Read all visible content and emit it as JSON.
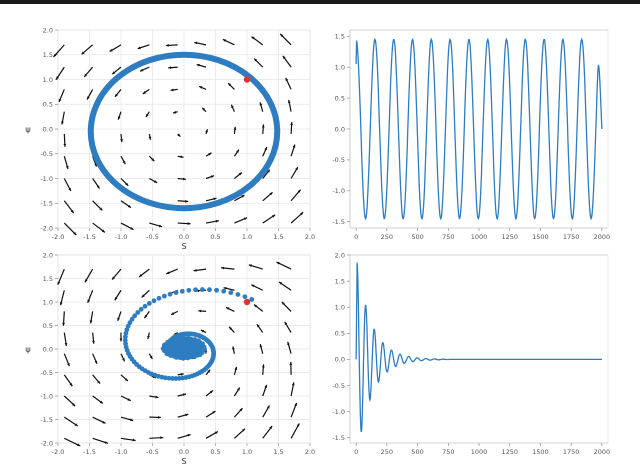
{
  "chart_data": [
    {
      "type": "scatter",
      "subtype": "phase-portrait-quiver",
      "xlabel": "S",
      "ylabel": "ψ",
      "xlim": [
        -2.0,
        2.0
      ],
      "ylim": [
        -2.0,
        2.0
      ],
      "xticks": [
        "-2.0",
        "-1.5",
        "-1.0",
        "-0.5",
        "0.0",
        "0.5",
        "1.0",
        "1.5",
        "2.0"
      ],
      "yticks": [
        "-2.0",
        "-1.5",
        "-1.0",
        "-0.5",
        "0.0",
        "0.5",
        "1.0",
        "1.5",
        "2.0"
      ],
      "grid": true,
      "series": [
        {
          "kind": "trajectory",
          "shape": "closed-orbit",
          "center": [
            0.0,
            -0.05
          ],
          "radius_x": 1.48,
          "radius_y": 1.55,
          "color": "#2e7dc0"
        },
        {
          "kind": "start-point",
          "x": 1.0,
          "y": 1.0,
          "color": "#e03030"
        }
      ]
    },
    {
      "type": "line",
      "xlim": [
        -50,
        2050
      ],
      "ylim": [
        -1.6,
        1.6
      ],
      "xticks": [
        "0",
        "250",
        "500",
        "750",
        "1000",
        "1250",
        "1500",
        "1750",
        "2000"
      ],
      "yticks": [
        "-1.5",
        "-1.0",
        "-0.5",
        "0.0",
        "0.5",
        "1.0",
        "1.5"
      ],
      "grid": false,
      "series": [
        {
          "kind": "sinusoid",
          "amplitude": 1.45,
          "period": 153,
          "x_start": 0,
          "x_end": 2000,
          "end_y": 0.0,
          "color": "#2e7dc0"
        }
      ]
    },
    {
      "type": "scatter",
      "subtype": "phase-portrait-quiver",
      "xlabel": "S",
      "ylabel": "ψ",
      "xlim": [
        -2.0,
        2.0
      ],
      "ylim": [
        -2.0,
        2.0
      ],
      "xticks": [
        "-2.0",
        "-1.5",
        "-1.0",
        "-0.5",
        "0.0",
        "0.5",
        "1.0",
        "1.5",
        "2.0"
      ],
      "yticks": [
        "-2.0",
        "-1.5",
        "-1.0",
        "-0.5",
        "0.0",
        "0.5",
        "1.0",
        "1.5",
        "2.0"
      ],
      "grid": true,
      "series": [
        {
          "kind": "trajectory",
          "shape": "spiral-to-center",
          "center": [
            0.0,
            0.0
          ],
          "color": "#2e7dc0"
        },
        {
          "kind": "start-point",
          "x": 1.0,
          "y": 1.0,
          "color": "#e03030"
        }
      ]
    },
    {
      "type": "line",
      "xlim": [
        -50,
        2050
      ],
      "ylim": [
        -1.6,
        2.0
      ],
      "xticks": [
        "0",
        "250",
        "500",
        "750",
        "1000",
        "1250",
        "1500",
        "1750",
        "2000"
      ],
      "yticks": [
        "-1.5",
        "-1.0",
        "-0.5",
        "0.0",
        "0.5",
        "1.0",
        "1.5",
        "2.0"
      ],
      "grid": false,
      "series": [
        {
          "kind": "damped-oscillation",
          "peak_y": 1.9,
          "trough_y": -1.55,
          "settle_x": 700,
          "final_y": 0.0,
          "x_end": 2000,
          "color": "#2e7dc0"
        }
      ]
    }
  ]
}
